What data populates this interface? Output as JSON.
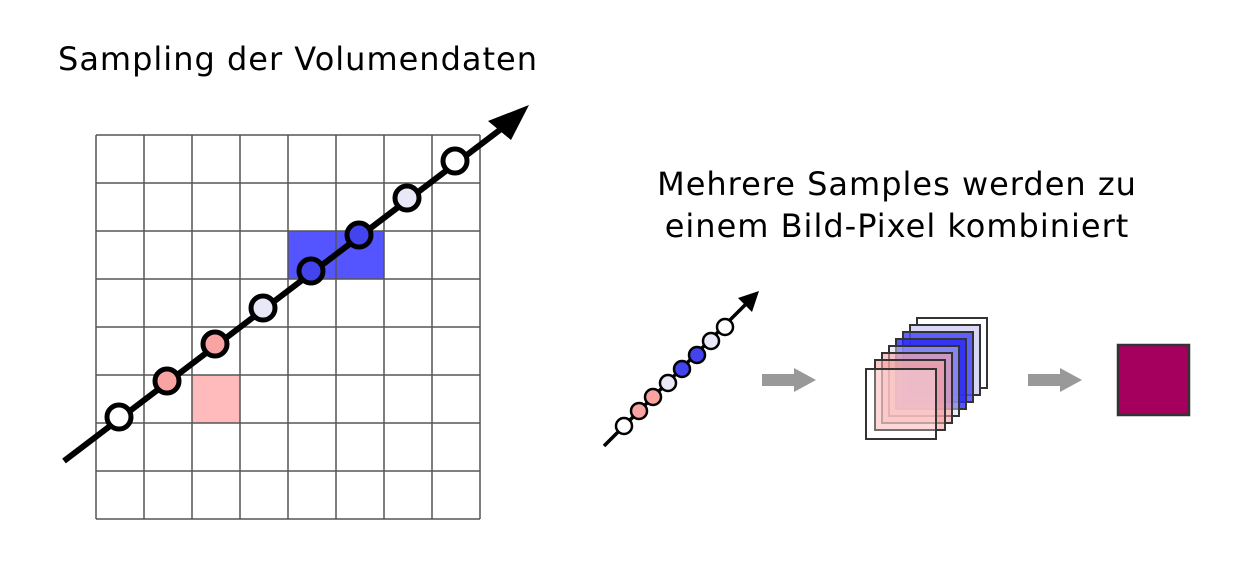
{
  "left_title": "Sampling der Volumendaten",
  "right_title": {
    "line1": "Mehrere Samples werden zu",
    "line2": "einem Bild-Pixel kombiniert"
  },
  "colors": {
    "grid_line": "#555555",
    "ray": "#000000",
    "blue_cell": "#5555ff",
    "blue_sample": "#4444ee",
    "pink_cell": "#ffbbbb",
    "pink_sample": "#f9a3a3",
    "light_sample": "#e8e8f8",
    "white_sample": "#ffffff",
    "arrow_gray": "#999999",
    "result_pixel": "#a6005f"
  },
  "icons": {
    "ray_arrow": "arrow-head-icon",
    "process_arrow": "right-arrow-icon"
  }
}
